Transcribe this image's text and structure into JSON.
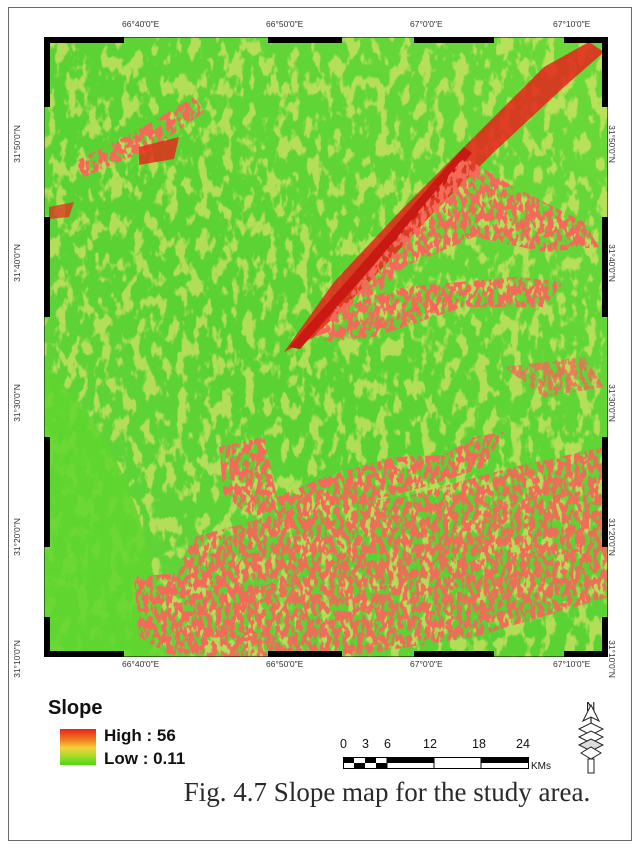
{
  "map": {
    "x_ticks": [
      "66°40'0\"E",
      "66°50'0\"E",
      "67°0'0\"E",
      "67°10'0\"E"
    ],
    "y_ticks": [
      "31°50'0\"N",
      "31°40'0\"N",
      "31°30'0\"N",
      "31°20'0\"N",
      "31°10'0\"N"
    ],
    "colors": {
      "high": "#e8231c",
      "mid": "#f7d03a",
      "low": "#4ed816",
      "plain": "#59d233"
    }
  },
  "legend": {
    "title": "Slope",
    "high_label": "High : 56",
    "low_label": "Low : 0.11"
  },
  "scale_bar": {
    "ticks": [
      "0",
      "3",
      "6",
      "12",
      "18",
      "24"
    ],
    "unit": "KMs"
  },
  "north_arrow": {
    "letter": "N"
  },
  "caption": "Fig. 4.7 Slope map for the study area."
}
